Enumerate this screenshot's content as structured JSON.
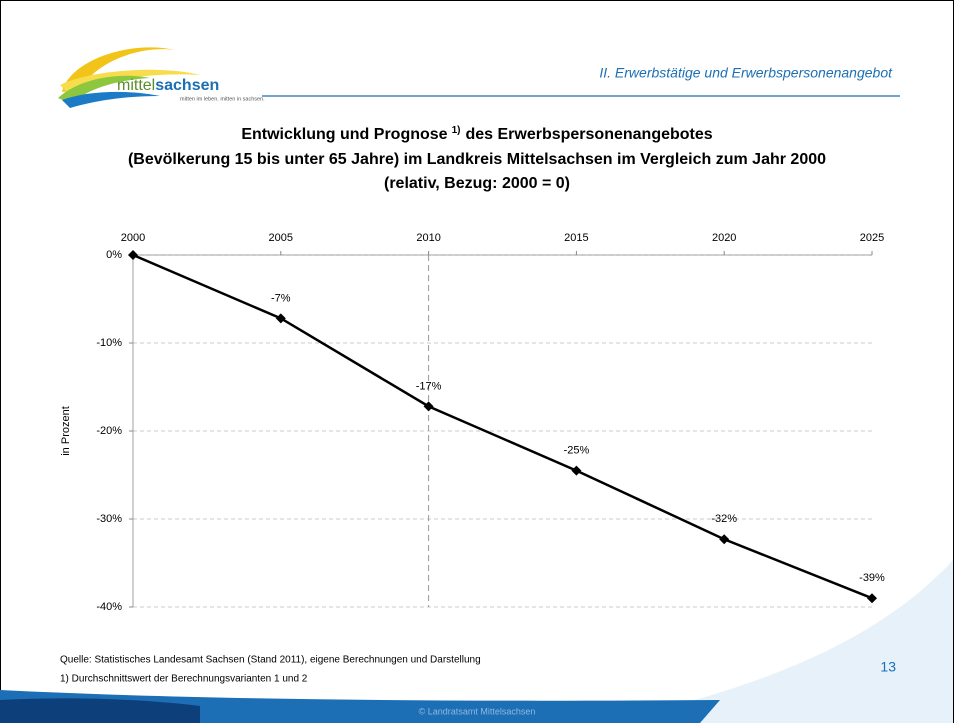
{
  "header": {
    "section": "II. Erwerbstätige und Erwerbspersonenangebot",
    "logo_light": "mittel",
    "logo_bold": "sachsen",
    "logo_tagline": "mitten im leben. mitten in sachsen."
  },
  "chart_data": {
    "type": "line",
    "title": [
      "Entwicklung und Prognose",
      "1)",
      "des Erwerbspersonenangebotes",
      "(Bevölkerung 15 bis unter 65 Jahre) im Landkreis Mittelsachsen im Vergleich zum Jahr 2000",
      "(relativ, Bezug: 2000 = 0)"
    ],
    "y_label": "in Prozent",
    "x": [
      2000,
      2005,
      2010,
      2015,
      2020,
      2025
    ],
    "values": [
      0,
      -7.2,
      -17.2,
      -24.5,
      -32.3,
      -39.0
    ],
    "value_labels": [
      null,
      "-7%",
      "-17%",
      "-25%",
      "-32%",
      "-39%"
    ],
    "color": "#000000",
    "xlim": [
      2000,
      2025
    ],
    "xticks": [
      2000,
      2005,
      2010,
      2015,
      2020,
      2025
    ],
    "ylim": [
      -40,
      0
    ],
    "yticks": [
      {
        "value": 0,
        "label": "0%"
      },
      {
        "value": -10,
        "label": "-10%"
      },
      {
        "value": -20,
        "label": "-20%"
      },
      {
        "value": -30,
        "label": "-30%"
      },
      {
        "value": -40,
        "label": "-40%"
      }
    ],
    "grid": true,
    "reference_x": 2010
  },
  "footer": {
    "source": "Quelle: Statistisches Landesamt Sachsen (Stand 2011), eigene Berechnungen und Darstellung",
    "footnote": "1) Durchschnittswert der Berechnungsvarianten 1 und 2",
    "page": "13",
    "copyright": "© Landratsamt Mittelsachsen"
  }
}
